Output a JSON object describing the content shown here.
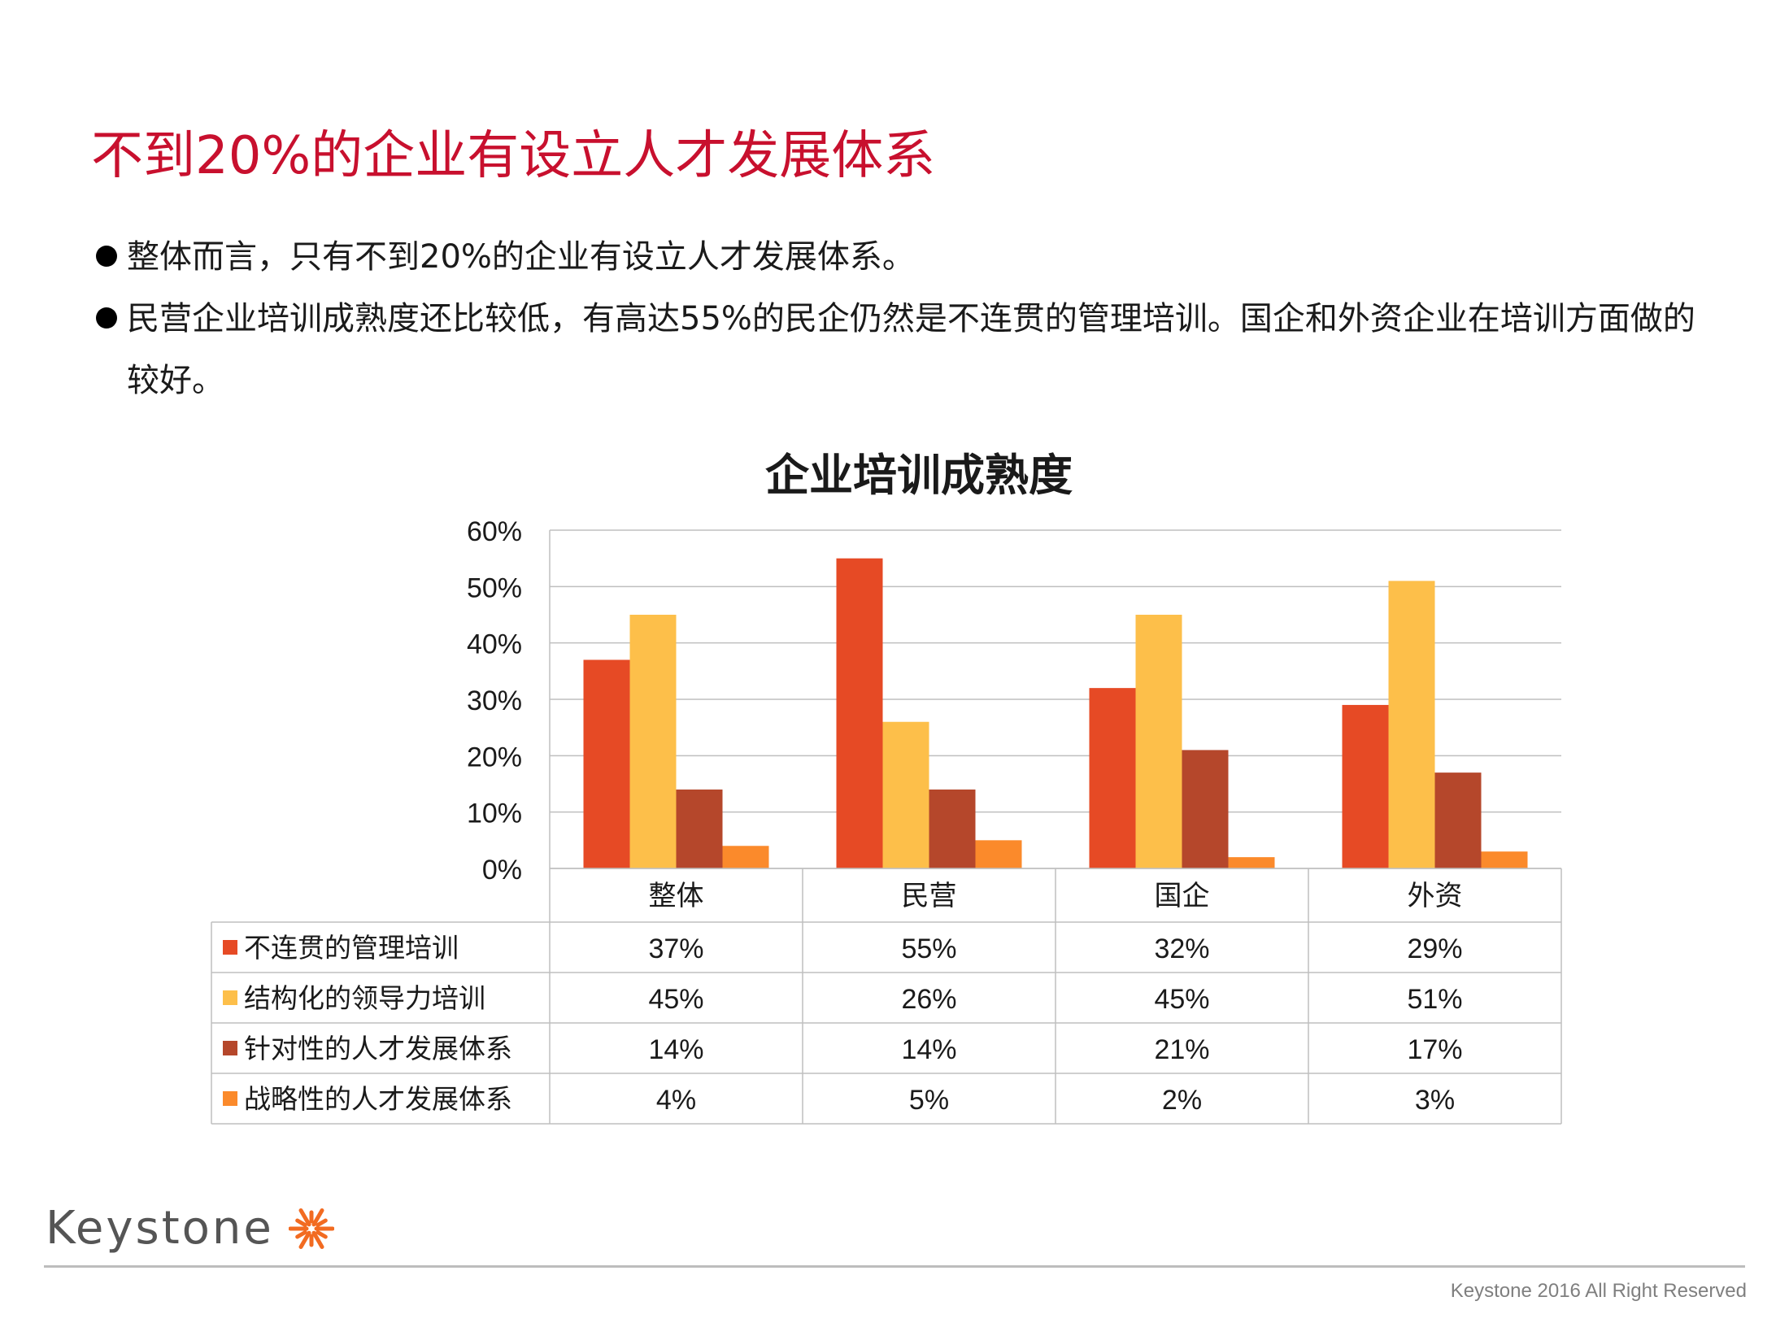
{
  "slide": {
    "title": "不到20%的企业有设立人才发展体系",
    "bullets": [
      "整体而言，只有不到20%的企业有设立人才发展体系。",
      "民营企业培训成熟度还比较低，有高达55%的民企仍然是不连贯的管理培训。国企和外资企业在培训方面做的较好。"
    ]
  },
  "chart_data": {
    "type": "bar",
    "title": "企业培训成熟度",
    "categories": [
      "整体",
      "民营",
      "国企",
      "外资"
    ],
    "series": [
      {
        "name": "不连贯的管理培训",
        "color": "#e64a25",
        "values": [
          37,
          55,
          32,
          29
        ],
        "labels": [
          "37%",
          "55%",
          "32%",
          "29%"
        ]
      },
      {
        "name": "结构化的领导力培训",
        "color": "#fdbf4a",
        "values": [
          45,
          26,
          45,
          51
        ],
        "labels": [
          "45%",
          "26%",
          "45%",
          "51%"
        ]
      },
      {
        "name": "针对性的人才发展体系",
        "color": "#b5472b",
        "values": [
          14,
          14,
          21,
          17
        ],
        "labels": [
          "14%",
          "14%",
          "21%",
          "17%"
        ]
      },
      {
        "name": "战略性的人才发展体系",
        "color": "#fb8a2b",
        "values": [
          4,
          5,
          2,
          3
        ],
        "labels": [
          "4%",
          "5%",
          "2%",
          "3%"
        ]
      }
    ],
    "ylim": [
      0,
      60
    ],
    "yticks": [
      "0%",
      "10%",
      "20%",
      "30%",
      "40%",
      "50%",
      "60%"
    ],
    "grid": true,
    "legend": "data-table"
  },
  "footer": {
    "brand": "Keystone",
    "copyright": "Keystone 2016 All Right Reserved",
    "brand_icon": "starburst-icon",
    "brand_color": "#f26b21"
  }
}
